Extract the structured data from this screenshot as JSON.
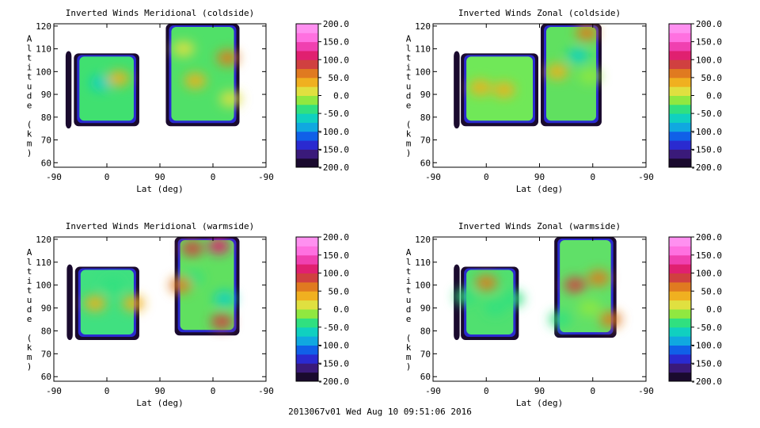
{
  "figure_footer": "2013067v01 Wed Aug 10 09:51:06 2016",
  "colorbar": {
    "tick_labels": [
      "200.0",
      "150.0",
      "100.0",
      "50.0",
      "0.0",
      "-50.0",
      "-100.0",
      "-150.0",
      "-200.0"
    ],
    "range": [
      -200,
      200
    ],
    "colors": [
      "#1a0a2e",
      "#3a1a7a",
      "#2a2ad0",
      "#1060e8",
      "#10a8e0",
      "#10d0c0",
      "#30e080",
      "#90e840",
      "#e0e040",
      "#f0b020",
      "#e07a20",
      "#d04040",
      "#e02070",
      "#f040b0",
      "#ff70e0",
      "#ff90f0"
    ]
  },
  "chart_data": [
    {
      "type": "heatmap",
      "title": "Inverted Winds Meridional (coldside)",
      "xlabel": "Lat (deg)",
      "ylabel": "Altitude (km)",
      "x_ticks": [
        "-90",
        "0",
        "90",
        "0",
        "-90"
      ],
      "y_ticks": [
        "60",
        "70",
        "80",
        "90",
        "100",
        "110",
        "120"
      ],
      "ylim": [
        58,
        121
      ],
      "regions": [
        {
          "x": [
            -70,
            -60
          ],
          "y": [
            75,
            109
          ],
          "fill": "#1a0a2e"
        },
        {
          "x": [
            -56,
            55
          ],
          "y": [
            76,
            108
          ],
          "fill": "#40e070"
        },
        {
          "x": [
            100,
            225
          ],
          "y": [
            76,
            121
          ],
          "fill": "#50e068"
        }
      ],
      "blobs": [
        {
          "x": -10,
          "y": 95,
          "value": -70
        },
        {
          "x": 20,
          "y": 97,
          "value": 30
        },
        {
          "x": 130,
          "y": 110,
          "value": 20
        },
        {
          "x": 150,
          "y": 96,
          "value": 45
        },
        {
          "x": 205,
          "y": 106,
          "value": 55
        },
        {
          "x": 210,
          "y": 88,
          "value": 10
        }
      ]
    },
    {
      "type": "heatmap",
      "title": "Inverted Winds Zonal (coldside)",
      "xlabel": "Lat (deg)",
      "ylabel": "Altitude (km)",
      "x_ticks": [
        "-90",
        "0",
        "90",
        "0",
        "-90"
      ],
      "y_ticks": [
        "60",
        "70",
        "80",
        "90",
        "100",
        "110",
        "120"
      ],
      "ylim": [
        58,
        121
      ],
      "regions": [
        {
          "x": [
            -55,
            -45
          ],
          "y": [
            75,
            109
          ],
          "fill": "#1a0a2e"
        },
        {
          "x": [
            -43,
            88
          ],
          "y": [
            76,
            108
          ],
          "fill": "#70e858"
        },
        {
          "x": [
            92,
            195
          ],
          "y": [
            76,
            121
          ],
          "fill": "#60e060"
        }
      ],
      "blobs": [
        {
          "x": -10,
          "y": 93,
          "value": 45
        },
        {
          "x": 30,
          "y": 92,
          "value": 40
        },
        {
          "x": 120,
          "y": 100,
          "value": 25
        },
        {
          "x": 155,
          "y": 107,
          "value": -60
        },
        {
          "x": 175,
          "y": 98,
          "value": -10
        },
        {
          "x": 170,
          "y": 117,
          "value": 60
        }
      ]
    },
    {
      "type": "heatmap",
      "title": "Inverted Winds Meridional (warmside)",
      "xlabel": "Lat (deg)",
      "ylabel": "Altitude (km)",
      "x_ticks": [
        "-90",
        "0",
        "90",
        "0",
        "-90"
      ],
      "y_ticks": [
        "60",
        "70",
        "80",
        "90",
        "100",
        "110",
        "120"
      ],
      "ylim": [
        58,
        121
      ],
      "regions": [
        {
          "x": [
            -68,
            -58
          ],
          "y": [
            76,
            109
          ],
          "fill": "#1a0a2e"
        },
        {
          "x": [
            -54,
            55
          ],
          "y": [
            76,
            108
          ],
          "fill": "#40e080"
        },
        {
          "x": [
            115,
            225
          ],
          "y": [
            78,
            121
          ],
          "fill": "#60e060"
        }
      ],
      "blobs": [
        {
          "x": -20,
          "y": 92,
          "value": 40
        },
        {
          "x": 10,
          "y": 100,
          "value": -40
        },
        {
          "x": 45,
          "y": 92,
          "value": 30
        },
        {
          "x": 190,
          "y": 117,
          "value": 110
        },
        {
          "x": 145,
          "y": 116,
          "value": 80
        },
        {
          "x": 145,
          "y": 103,
          "value": -50
        },
        {
          "x": 200,
          "y": 94,
          "value": -60
        },
        {
          "x": 195,
          "y": 84,
          "value": 90
        },
        {
          "x": 125,
          "y": 100,
          "value": 50
        }
      ]
    },
    {
      "type": "heatmap",
      "title": "Inverted Winds Zonal (warmside)",
      "xlabel": "Lat (deg)",
      "ylabel": "Altitude (km)",
      "x_ticks": [
        "-90",
        "0",
        "90",
        "0",
        "-90"
      ],
      "y_ticks": [
        "60",
        "70",
        "80",
        "90",
        "100",
        "110",
        "120"
      ],
      "ylim": [
        58,
        121
      ],
      "regions": [
        {
          "x": [
            -55,
            -45
          ],
          "y": [
            76,
            109
          ],
          "fill": "#1a0a2e"
        },
        {
          "x": [
            -43,
            55
          ],
          "y": [
            76,
            108
          ],
          "fill": "#50e070"
        },
        {
          "x": [
            115,
            220
          ],
          "y": [
            77,
            121
          ],
          "fill": "#60e068"
        }
      ],
      "blobs": [
        {
          "x": -35,
          "y": 95,
          "value": -40
        },
        {
          "x": 0,
          "y": 101,
          "value": 70
        },
        {
          "x": 15,
          "y": 90,
          "value": -30
        },
        {
          "x": 45,
          "y": 94,
          "value": -30
        },
        {
          "x": 150,
          "y": 100,
          "value": 80
        },
        {
          "x": 190,
          "y": 103,
          "value": 70
        },
        {
          "x": 175,
          "y": 90,
          "value": -20
        },
        {
          "x": 210,
          "y": 85,
          "value": 60
        },
        {
          "x": 125,
          "y": 85,
          "value": -50
        }
      ]
    }
  ]
}
